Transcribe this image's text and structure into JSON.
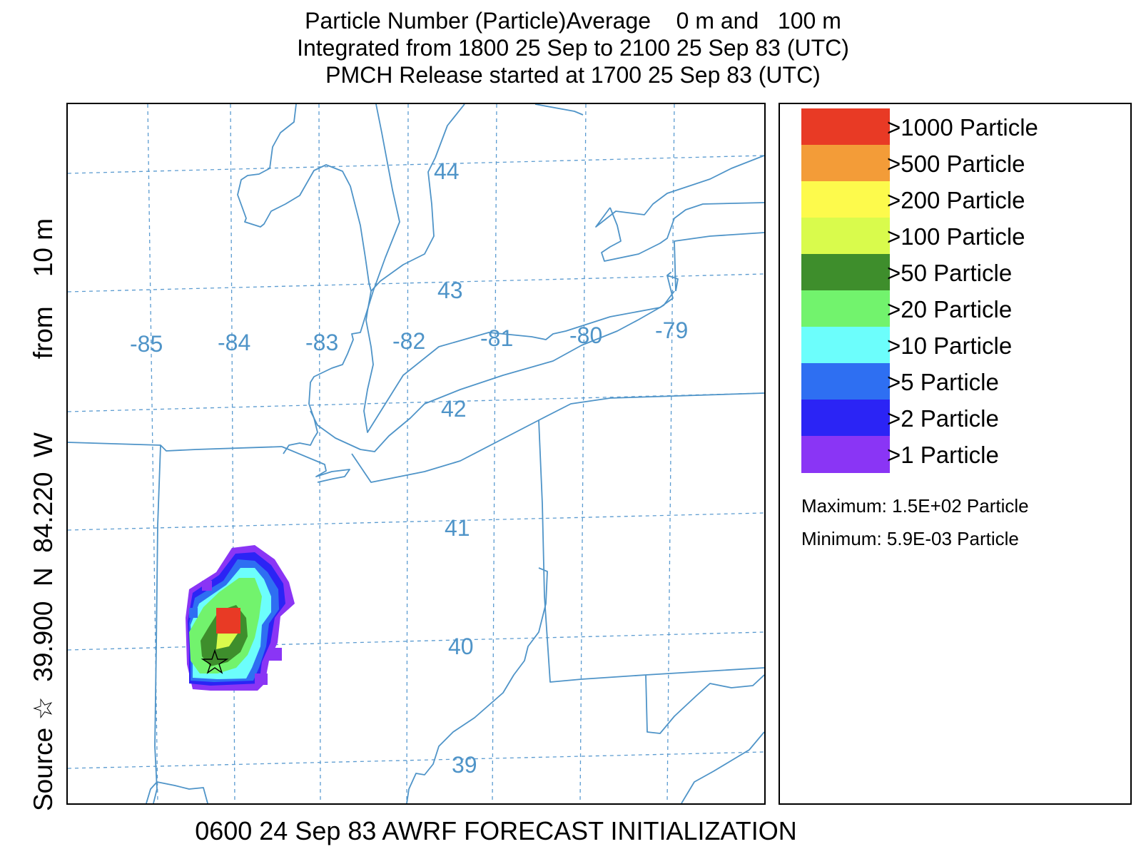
{
  "title": {
    "line1": "Particle Number (Particle)Average    0 m and   100 m",
    "line2": "Integrated from 1800 25 Sep to 2100 25 Sep 83 (UTC)",
    "line3": "PMCH Release started at 1700 25 Sep 83 (UTC)"
  },
  "side_label": "Source ☆  39.900  N  84.220  W          from    10 m",
  "bottom_label": "0600 24 Sep 83 AWRF FORECAST INITIALIZATION",
  "map": {
    "longitude_labels": [
      "-85",
      "-84",
      "-83",
      "-82",
      "-81",
      "-80",
      "-79"
    ],
    "latitude_labels": [
      "44",
      "43",
      "42",
      "41",
      "40",
      "39"
    ],
    "source_location": {
      "lat": 39.9,
      "lon": -84.22
    },
    "gridline_color": "#5b9bd0",
    "border_color": "#4f94c8"
  },
  "legend": {
    "items": [
      {
        "label": ">1000 Particle",
        "color": "#e83a25"
      },
      {
        "label": ">500 Particle",
        "color": "#f39c38"
      },
      {
        "label": ">200 Particle",
        "color": "#fdfa4c"
      },
      {
        "label": ">100 Particle",
        "color": "#d9fb4c"
      },
      {
        "label": ">50 Particle",
        "color": "#3e8e2c"
      },
      {
        "label": ">20 Particle",
        "color": "#72f36d"
      },
      {
        "label": ">10 Particle",
        "color": "#6cfefc"
      },
      {
        "label": ">5 Particle",
        "color": "#2e6ff2"
      },
      {
        "label": ">2 Particle",
        "color": "#2b24f5"
      },
      {
        "label": ">1 Particle",
        "color": "#8a35f5"
      }
    ],
    "maximum": "Maximum: 1.5E+02 Particle",
    "minimum": "Minimum: 5.9E-03 Particle"
  }
}
